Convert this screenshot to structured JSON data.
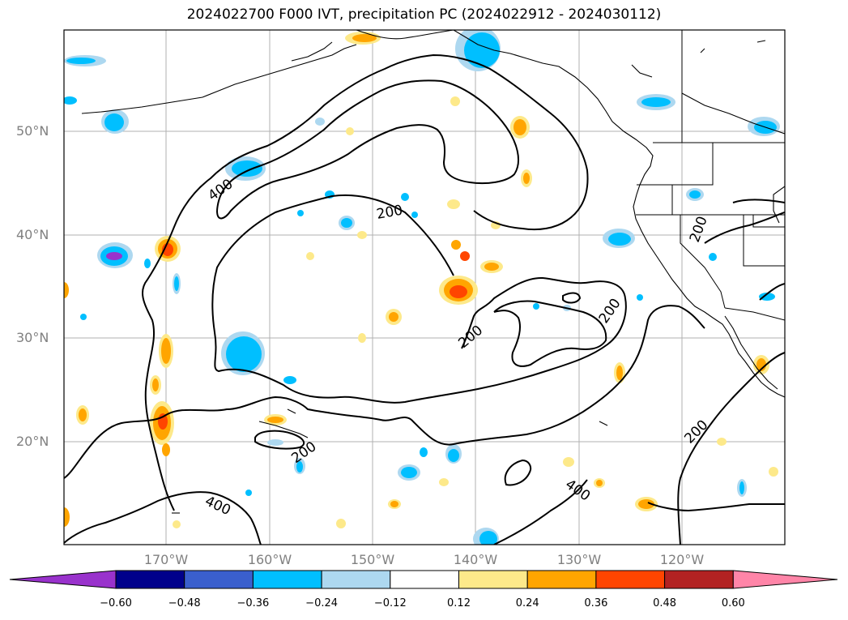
{
  "title": "2024022700 F000 IVT, precipitation PC (2024022912 - 2024030112)",
  "lat_labels": [
    "50°N",
    "40°N",
    "30°N",
    "20°N"
  ],
  "lon_labels": [
    "170°W",
    "160°W",
    "150°W",
    "140°W",
    "130°W",
    "120°W"
  ],
  "contour_labels": [
    "400",
    "200",
    "200",
    "200",
    "200",
    "200",
    "200",
    "400"
  ],
  "colorbar": {
    "ticks": [
      "−0.60",
      "−0.48",
      "−0.36",
      "−0.24",
      "−0.12",
      "0.12",
      "0.24",
      "0.36",
      "0.48",
      "0.60"
    ],
    "colors": [
      "#9932cc",
      "#00008b",
      "#3a5fcd",
      "#00bfff",
      "#add8f0",
      "#ffffff",
      "#fde98a",
      "#ffa500",
      "#ff4500",
      "#b22222",
      "#ff85a8"
    ]
  },
  "colors": {
    "grid": "#b0b0b0",
    "coast": "#000000",
    "tick_label": "#808080"
  }
}
